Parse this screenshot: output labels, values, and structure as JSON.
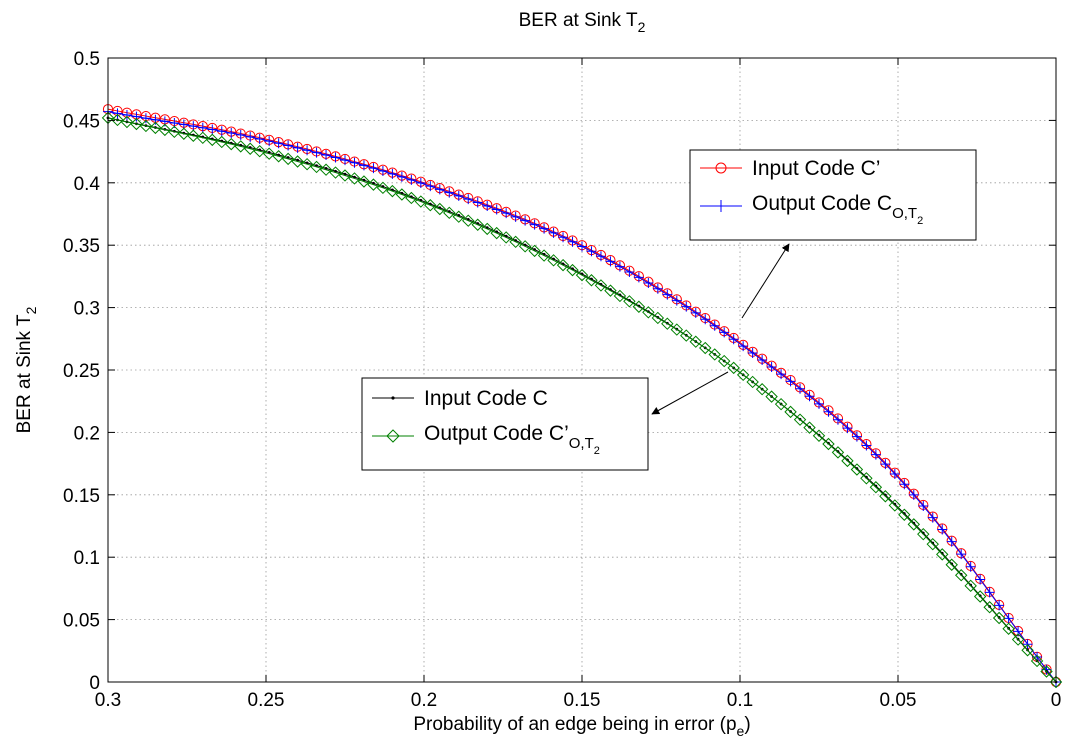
{
  "chart_data": {
    "type": "line",
    "title": {
      "main": "BER at Sink T",
      "sub": "2"
    },
    "xlabel": {
      "main": "Probability of an edge being in error (p",
      "sub": "e",
      "tail": ")"
    },
    "ylabel": {
      "main": "BER at Sink T",
      "sub": "2"
    },
    "xlim": [
      0.3,
      0
    ],
    "ylim": [
      0,
      0.5
    ],
    "x_reversed": true,
    "grid": true,
    "xticks": [
      "0.3",
      "0.25",
      "0.2",
      "0.15",
      "0.1",
      "0.05",
      "0"
    ],
    "yticks": [
      "0",
      "0.05",
      "0.1",
      "0.15",
      "0.2",
      "0.25",
      "0.3",
      "0.35",
      "0.4",
      "0.45",
      "0.5"
    ],
    "x": [
      0.3,
      0.25,
      0.2,
      0.15,
      0.1,
      0.05,
      0.0
    ],
    "series": [
      {
        "name": "Input Code C'",
        "legend_main": "Input Code C’",
        "legend_sub": "",
        "color": "#ff0000",
        "marker": "circle",
        "values": [
          0.459,
          0.435,
          0.4,
          0.35,
          0.272,
          0.165,
          0.0
        ]
      },
      {
        "name": "Output Code C_{O,T_2}",
        "legend_main": "Output Code C",
        "legend_sub": "O,T",
        "legend_subsub": "2",
        "color": "#0000ff",
        "marker": "plus",
        "values": [
          0.457,
          0.434,
          0.399,
          0.349,
          0.271,
          0.164,
          0.0
        ]
      },
      {
        "name": "Input Code C",
        "legend_main": "Input Code C",
        "legend_sub": "",
        "color": "#000000",
        "marker": "dot",
        "values": [
          0.452,
          0.425,
          0.385,
          0.327,
          0.248,
          0.14,
          0.0
        ]
      },
      {
        "name": "Output Code C'_{O,T_2}",
        "legend_main": "Output Code C’",
        "legend_sub": "O,T",
        "legend_subsub": "2",
        "color": "#008000",
        "marker": "diamond",
        "values": [
          0.452,
          0.424,
          0.384,
          0.326,
          0.248,
          0.139,
          0.0
        ]
      }
    ],
    "legends": [
      {
        "placement": "upper-right",
        "series_indices": [
          0,
          1
        ]
      },
      {
        "placement": "middle-center",
        "series_indices": [
          2,
          3
        ]
      }
    ]
  }
}
